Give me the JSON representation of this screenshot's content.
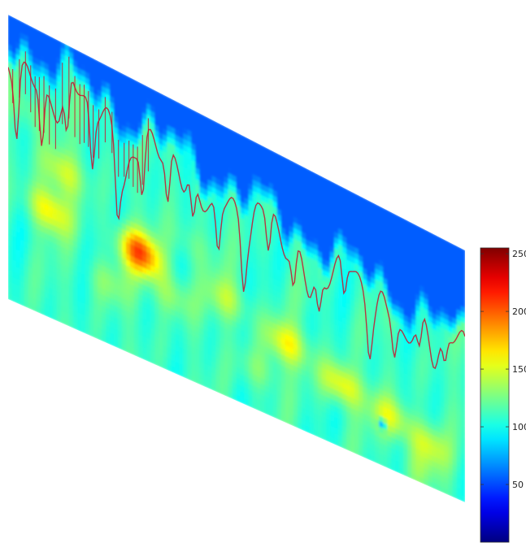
{
  "chart_data": {
    "type": "heatmap",
    "title": "",
    "xlabel": "",
    "ylabel": "",
    "colormap": "jet",
    "colorbar": {
      "min": 0,
      "max": 255,
      "ticks": [
        50,
        100,
        150,
        200,
        250
      ],
      "tick_labels": [
        "50",
        "100",
        "150",
        "200",
        "250"
      ],
      "placement": "right"
    },
    "grid": false,
    "description_values": {
      "background_level": 110,
      "top_band_level": 55,
      "max_level": 200
    },
    "hotspots": [
      {
        "u": 0.29,
        "v": 0.62,
        "value": 200
      },
      {
        "u": 0.09,
        "v": 0.62,
        "value": 162
      },
      {
        "u": 0.12,
        "v": 0.46,
        "value": 148
      },
      {
        "u": 0.48,
        "v": 0.64,
        "value": 140
      },
      {
        "u": 0.61,
        "v": 0.7,
        "value": 158
      },
      {
        "u": 0.73,
        "v": 0.76,
        "value": 160
      },
      {
        "u": 0.84,
        "v": 0.8,
        "value": 150
      },
      {
        "u": 0.92,
        "v": 0.84,
        "value": 145
      },
      {
        "u": 0.36,
        "v": 0.72,
        "value": 135
      },
      {
        "u": 0.22,
        "v": 0.78,
        "value": 130
      },
      {
        "u": 0.55,
        "v": 0.85,
        "value": 128
      },
      {
        "u": 0.9,
        "v": 0.95,
        "value": 125
      },
      {
        "u": 0.05,
        "v": 0.3,
        "value": 130
      },
      {
        "u": 0.4,
        "v": 0.5,
        "value": 125
      }
    ]
  }
}
